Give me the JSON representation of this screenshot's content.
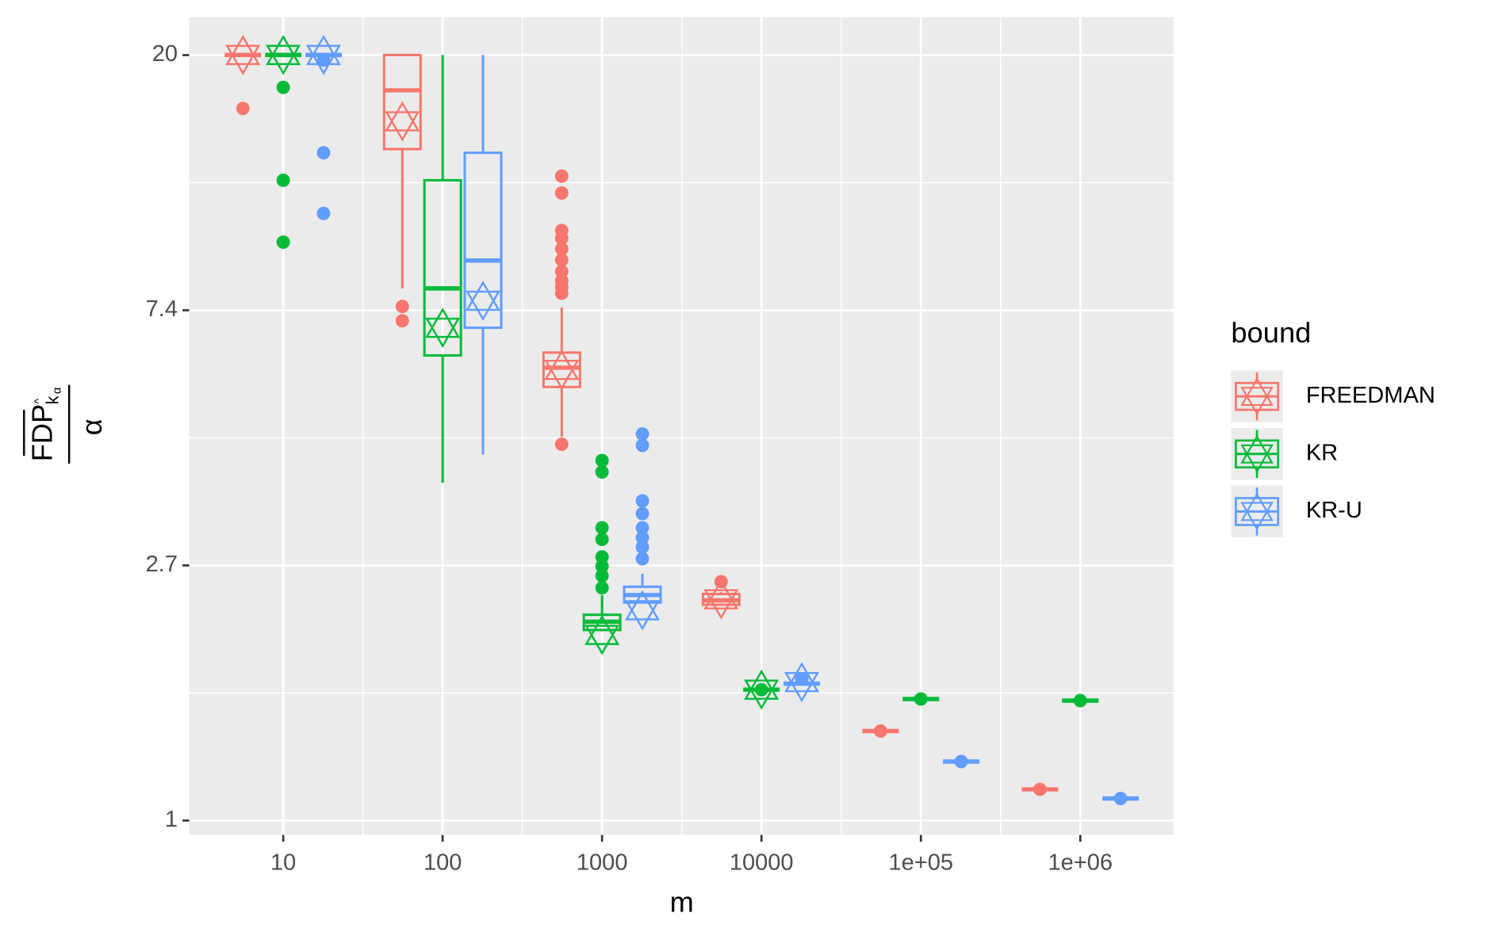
{
  "chart_data": {
    "type": "box",
    "x_label": "m",
    "y_label": {
      "numerator": "FDP",
      "subscript": "k",
      "subscript_sub": "α",
      "denominator": "α"
    },
    "x": [
      10,
      100,
      1000,
      10000,
      100000,
      1000000
    ],
    "xlim": [
      2.57,
      3840000
    ],
    "ylim": [
      0.945,
      23.3
    ],
    "log_x": true,
    "log_y": true,
    "grid": true,
    "xticks": [
      10,
      100,
      1000,
      10000,
      {
        "value": 100000,
        "label": "1e+05"
      },
      {
        "value": 1000000,
        "label": "1e+06"
      }
    ],
    "yticks": [
      {
        "value": 1,
        "label": "1"
      },
      {
        "value": 2.718,
        "label": "2.7"
      },
      {
        "value": 7.389,
        "label": "7.4"
      },
      {
        "value": 20.09,
        "label": "20"
      }
    ],
    "legend_title": "bound",
    "legend_position": "right",
    "series": [
      {
        "name": "FREEDMAN",
        "color": "#f8766d",
        "boxes": [
          {
            "min": 20.1,
            "q1": 20.1,
            "median": 20.1,
            "q3": 20.1,
            "max": 20.1,
            "mean": 20.1,
            "outliers": [
              16.3
            ]
          },
          {
            "min": 8.05,
            "q1": 13.9,
            "median": 17.5,
            "q3": 20.1,
            "max": 20.1,
            "mean": 15.5,
            "outliers": [
              7.5,
              7.09
            ]
          },
          {
            "min": 4.5,
            "q1": 5.47,
            "median": 5.9,
            "q3": 6.26,
            "max": 7.47,
            "mean": 5.85,
            "outliers": [
              12.5,
              11.7,
              10.1,
              9.8,
              9.4,
              9.0,
              8.6,
              8.3,
              8.1,
              7.9,
              4.37
            ]
          },
          {
            "min": 2.32,
            "q1": 2.33,
            "median": 2.37,
            "q3": 2.43,
            "max": 2.45,
            "mean": 2.38,
            "outliers": [
              2.55
            ]
          },
          {
            "min": 1.42,
            "q1": 1.42,
            "median": 1.42,
            "q3": 1.42,
            "max": 1.42,
            "mean": null,
            "outliers": [
              1.42
            ]
          },
          {
            "min": 1.13,
            "q1": 1.13,
            "median": 1.13,
            "q3": 1.13,
            "max": 1.13,
            "mean": null,
            "outliers": [
              1.13
            ]
          }
        ]
      },
      {
        "name": "KR",
        "color": "#00ba38",
        "boxes": [
          {
            "min": 20.1,
            "q1": 20.1,
            "median": 20.1,
            "q3": 20.1,
            "max": 20.1,
            "mean": 20.1,
            "outliers": [
              17.7,
              12.3,
              9.65
            ]
          },
          {
            "min": 3.76,
            "q1": 6.19,
            "median": 8.05,
            "q3": 12.3,
            "max": 20.1,
            "mean": 6.9,
            "outliers": []
          },
          {
            "min": 2.11,
            "q1": 2.11,
            "median": 2.18,
            "q3": 2.24,
            "max": 2.42,
            "mean": 2.07,
            "outliers": [
              4.1,
              3.92,
              3.15,
              3.01,
              2.81,
              2.71,
              2.61,
              2.49
            ]
          },
          {
            "min": 1.67,
            "q1": 1.67,
            "median": 1.67,
            "q3": 1.67,
            "max": 1.67,
            "mean": 1.67,
            "outliers": [
              1.67
            ]
          },
          {
            "min": 1.61,
            "q1": 1.61,
            "median": 1.61,
            "q3": 1.61,
            "max": 1.61,
            "mean": null,
            "outliers": [
              1.61
            ]
          },
          {
            "min": 1.6,
            "q1": 1.6,
            "median": 1.6,
            "q3": 1.6,
            "max": 1.6,
            "mean": null,
            "outliers": [
              1.6
            ]
          }
        ]
      },
      {
        "name": "KR-U",
        "color": "#619cff",
        "boxes": [
          {
            "min": 20.1,
            "q1": 20.1,
            "median": 20.1,
            "q3": 20.1,
            "max": 20.1,
            "mean": 20.1,
            "outliers": [
              19.7,
              13.7,
              10.8
            ]
          },
          {
            "min": 4.2,
            "q1": 6.9,
            "median": 8.98,
            "q3": 13.7,
            "max": 20.1,
            "mean": 7.67,
            "outliers": []
          },
          {
            "min": 2.35,
            "q1": 2.35,
            "median": 2.42,
            "q3": 2.5,
            "max": 2.63,
            "mean": 2.28,
            "outliers": [
              4.55,
              4.35,
              3.5,
              3.33,
              3.15,
              3.03,
              2.92,
              2.79
            ]
          },
          {
            "min": 1.71,
            "q1": 1.71,
            "median": 1.71,
            "q3": 1.71,
            "max": 1.71,
            "mean": 1.72,
            "outliers": [
              1.74
            ]
          },
          {
            "min": 1.26,
            "q1": 1.26,
            "median": 1.26,
            "q3": 1.26,
            "max": 1.26,
            "mean": null,
            "outliers": [
              1.26
            ]
          },
          {
            "min": 1.09,
            "q1": 1.09,
            "median": 1.09,
            "q3": 1.09,
            "max": 1.09,
            "mean": null,
            "outliers": [
              1.09
            ]
          }
        ]
      }
    ]
  }
}
